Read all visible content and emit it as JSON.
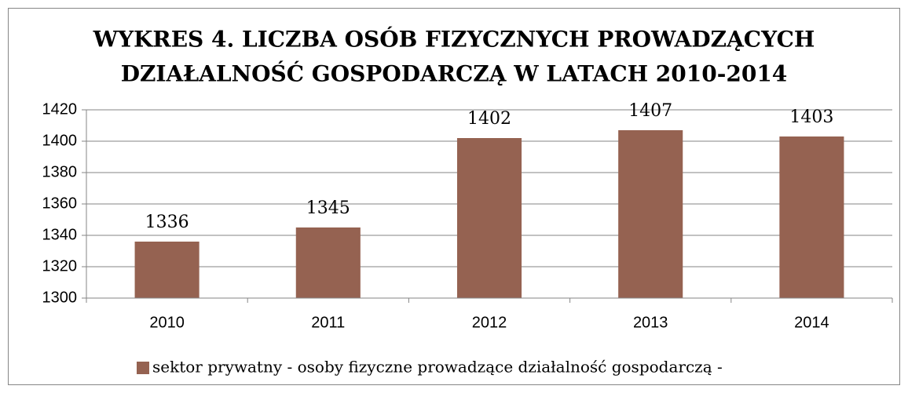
{
  "chart_data": {
    "type": "bar",
    "title": [
      "WYKRES 4. LICZBA OSÓB FIZYCZNYCH PROWADZĄCYCH",
      "DZIAŁALNOŚĆ GOSPODARCZĄ W LATACH 2010-2014"
    ],
    "categories": [
      "2010",
      "2011",
      "2012",
      "2013",
      "2014"
    ],
    "series": [
      {
        "name": "sektor prywatny - osoby fizyczne prowadzące działalność gospodarczą -",
        "color": "#956251",
        "values": [
          1336,
          1345,
          1402,
          1407,
          1403
        ]
      }
    ],
    "ylim": [
      1300,
      1420
    ],
    "yticks": [
      1300,
      1320,
      1340,
      1360,
      1380,
      1400,
      1420
    ],
    "grid": true,
    "legend": "bottom"
  }
}
